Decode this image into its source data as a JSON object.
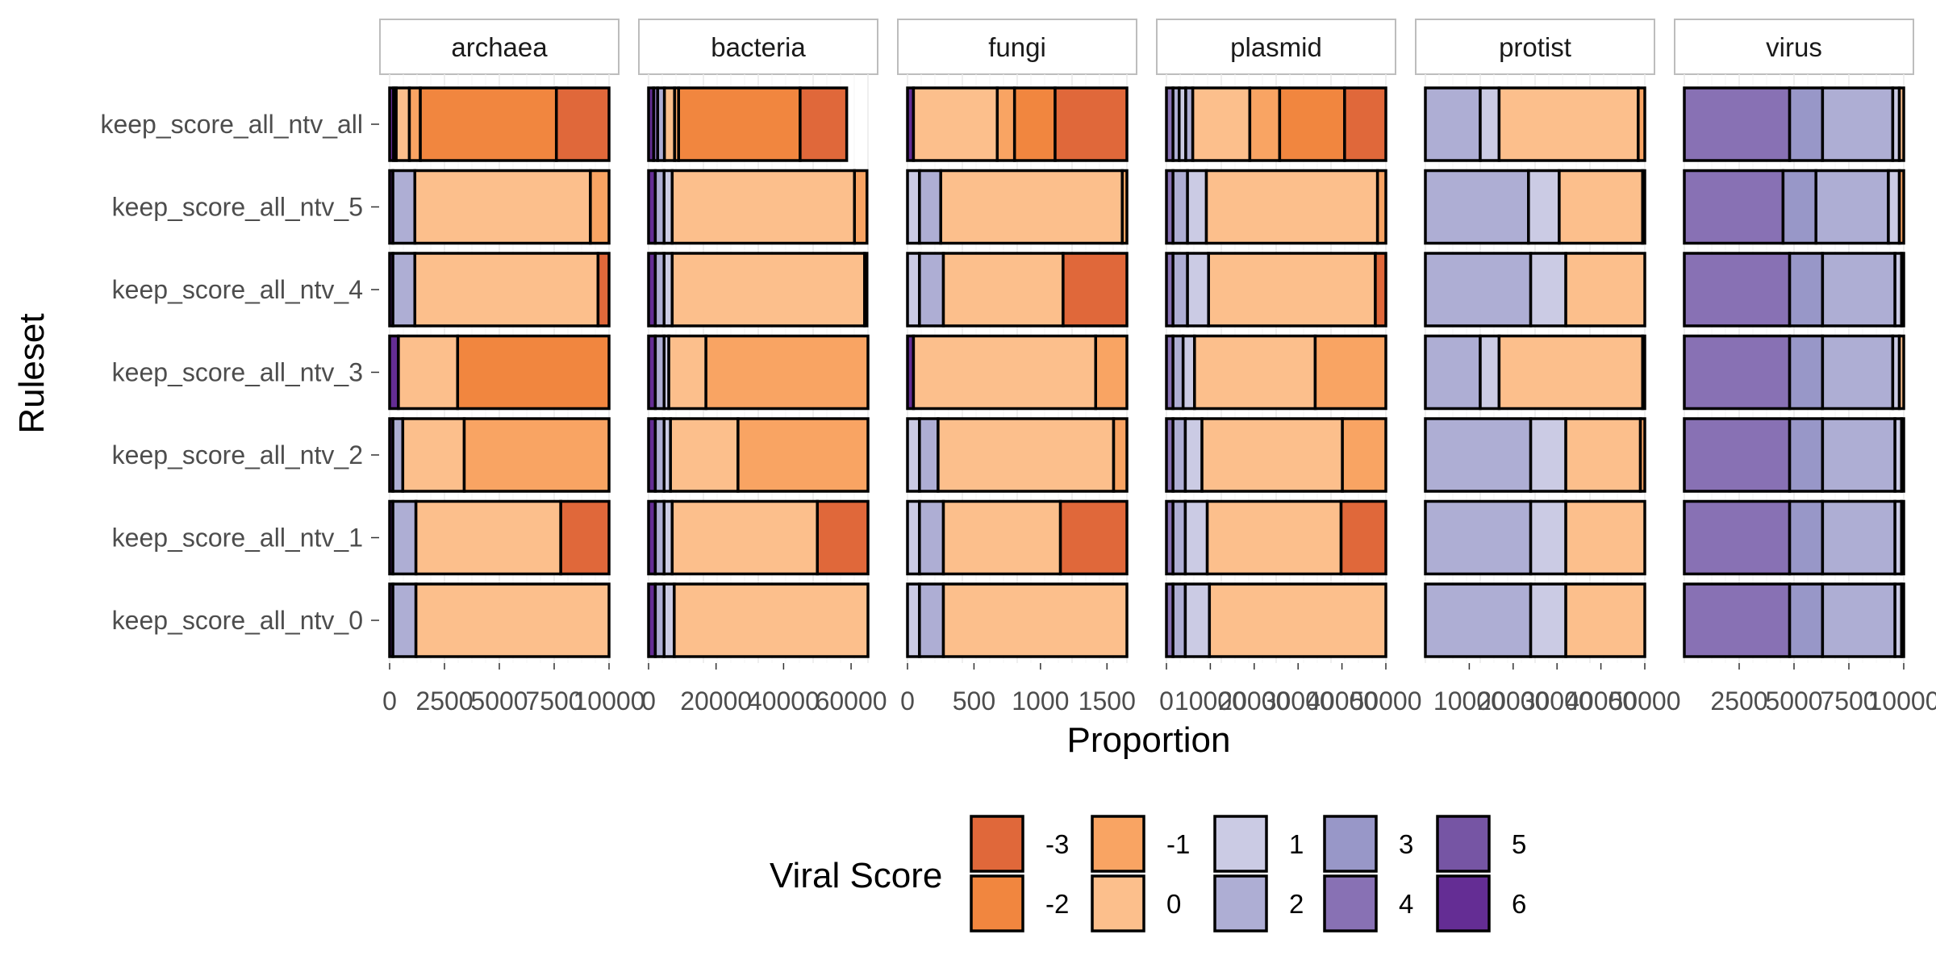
{
  "chart_data": {
    "type": "bar",
    "orientation": "horizontal",
    "stacked": true,
    "xlabel": "Proportion",
    "ylabel": "Ruleset",
    "grid": true,
    "legend_placement": "bottom",
    "legend_title": "Viral Score",
    "categories": [
      "keep_score_all_ntv_all",
      "keep_score_all_ntv_5",
      "keep_score_all_ntv_4",
      "keep_score_all_ntv_3",
      "keep_score_all_ntv_2",
      "keep_score_all_ntv_1",
      "keep_score_all_ntv_0"
    ],
    "score_levels": [
      "-3",
      "-2",
      "-1",
      "0",
      "1",
      "2",
      "3",
      "4",
      "5",
      "6"
    ],
    "colors": {
      "-3": "#e0683a",
      "-2": "#f1863f",
      "-1": "#f9a463",
      "0": "#fcbf8c",
      "1": "#cbcbe4",
      "2": "#aeaed4",
      "3": "#9897c8",
      "4": "#8871b4",
      "5": "#7655a4",
      "6": "#642d94"
    },
    "panels": [
      {
        "name": "archaea",
        "xlim": [
          0,
          10000
        ],
        "xticks": [
          "0",
          "2500",
          "5000",
          "7500",
          "10000"
        ],
        "tick_values": [
          0,
          2500,
          5000,
          7500,
          10000
        ],
        "rows": [
          [
            {
              "s": "6",
              "v": 180
            },
            {
              "s": "2",
              "v": 120
            },
            {
              "s": "0",
              "v": 600
            },
            {
              "s": "-1",
              "v": 500
            },
            {
              "s": "-2",
              "v": 6200
            },
            {
              "s": "-3",
              "v": 2400
            }
          ],
          [
            {
              "s": "6",
              "v": 150
            },
            {
              "s": "2",
              "v": 1000
            },
            {
              "s": "0",
              "v": 8000
            },
            {
              "s": "-1",
              "v": 850
            }
          ],
          [
            {
              "s": "6",
              "v": 150
            },
            {
              "s": "2",
              "v": 1000
            },
            {
              "s": "0",
              "v": 8350
            },
            {
              "s": "-3",
              "v": 500
            }
          ],
          [
            {
              "s": "6",
              "v": 400
            },
            {
              "s": "0",
              "v": 2700
            },
            {
              "s": "-2",
              "v": 6900
            }
          ],
          [
            {
              "s": "6",
              "v": 150
            },
            {
              "s": "2",
              "v": 450
            },
            {
              "s": "0",
              "v": 2800
            },
            {
              "s": "-1",
              "v": 6600
            }
          ],
          [
            {
              "s": "6",
              "v": 150
            },
            {
              "s": "2",
              "v": 1050
            },
            {
              "s": "0",
              "v": 6600
            },
            {
              "s": "-3",
              "v": 2200
            }
          ],
          [
            {
              "s": "6",
              "v": 150
            },
            {
              "s": "2",
              "v": 1050
            },
            {
              "s": "0",
              "v": 8800
            }
          ]
        ]
      },
      {
        "name": "bacteria",
        "xlim": [
          0,
          65000
        ],
        "xticks": [
          "0",
          "20000",
          "40000",
          "60000"
        ],
        "tick_values": [
          0,
          20000,
          40000,
          60000
        ],
        "rows": [
          [
            {
              "s": "6",
              "v": 1500
            },
            {
              "s": "4",
              "v": 1200
            },
            {
              "s": "2",
              "v": 2000
            },
            {
              "s": "0",
              "v": 3000
            },
            {
              "s": "-1",
              "v": 1200
            },
            {
              "s": "-2",
              "v": 36000
            },
            {
              "s": "-3",
              "v": 13800
            }
          ],
          [
            {
              "s": "6",
              "v": 2000
            },
            {
              "s": "2",
              "v": 2600
            },
            {
              "s": "1",
              "v": 2400
            },
            {
              "s": "0",
              "v": 54000
            },
            {
              "s": "-1",
              "v": 3700
            }
          ],
          [
            {
              "s": "6",
              "v": 2000
            },
            {
              "s": "2",
              "v": 2600
            },
            {
              "s": "1",
              "v": 2400
            },
            {
              "s": "0",
              "v": 57000
            },
            {
              "s": "-1",
              "v": 700
            }
          ],
          [
            {
              "s": "6",
              "v": 2000
            },
            {
              "s": "2",
              "v": 2600
            },
            {
              "s": "1",
              "v": 1400
            },
            {
              "s": "0",
              "v": 11000
            },
            {
              "s": "-1",
              "v": 48000
            }
          ],
          [
            {
              "s": "6",
              "v": 2000
            },
            {
              "s": "2",
              "v": 2600
            },
            {
              "s": "1",
              "v": 1900
            },
            {
              "s": "0",
              "v": 20000
            },
            {
              "s": "-1",
              "v": 38500
            }
          ],
          [
            {
              "s": "6",
              "v": 2000
            },
            {
              "s": "2",
              "v": 2600
            },
            {
              "s": "1",
              "v": 2400
            },
            {
              "s": "0",
              "v": 43000
            },
            {
              "s": "-3",
              "v": 15000
            }
          ],
          [
            {
              "s": "6",
              "v": 2000
            },
            {
              "s": "2",
              "v": 2600
            },
            {
              "s": "1",
              "v": 3000
            },
            {
              "s": "0",
              "v": 57400
            }
          ]
        ]
      },
      {
        "name": "fungi",
        "xlim": [
          0,
          1650
        ],
        "xticks": [
          "0",
          "500",
          "1000",
          "1500"
        ],
        "tick_values": [
          0,
          500,
          1000,
          1500
        ],
        "rows": [
          [
            {
              "s": "6",
              "v": 45
            },
            {
              "s": "0",
              "v": 630
            },
            {
              "s": "-1",
              "v": 130
            },
            {
              "s": "-2",
              "v": 305
            },
            {
              "s": "-3",
              "v": 540
            }
          ],
          [
            {
              "s": "1",
              "v": 90
            },
            {
              "s": "2",
              "v": 160
            },
            {
              "s": "0",
              "v": 1365
            },
            {
              "s": "-1",
              "v": 35
            }
          ],
          [
            {
              "s": "1",
              "v": 90
            },
            {
              "s": "2",
              "v": 180
            },
            {
              "s": "0",
              "v": 900
            },
            {
              "s": "-3",
              "v": 480
            }
          ],
          [
            {
              "s": "6",
              "v": 45
            },
            {
              "s": "0",
              "v": 1370
            },
            {
              "s": "-1",
              "v": 235
            }
          ],
          [
            {
              "s": "1",
              "v": 90
            },
            {
              "s": "2",
              "v": 140
            },
            {
              "s": "0",
              "v": 1320
            },
            {
              "s": "-1",
              "v": 100
            }
          ],
          [
            {
              "s": "1",
              "v": 90
            },
            {
              "s": "2",
              "v": 180
            },
            {
              "s": "0",
              "v": 880
            },
            {
              "s": "-3",
              "v": 500
            }
          ],
          [
            {
              "s": "1",
              "v": 90
            },
            {
              "s": "2",
              "v": 180
            },
            {
              "s": "0",
              "v": 1380
            }
          ]
        ]
      },
      {
        "name": "plasmid",
        "xlim": [
          0,
          50000
        ],
        "xticks": [
          "0",
          "10000",
          "20000",
          "30000",
          "40000",
          "50000"
        ],
        "tick_values": [
          0,
          10000,
          20000,
          30000,
          40000,
          50000
        ],
        "rows": [
          [
            {
              "s": "4",
              "v": 1500
            },
            {
              "s": "2",
              "v": 1400
            },
            {
              "s": "1",
              "v": 1500
            },
            {
              "s": "2",
              "v": 1600
            },
            {
              "s": "0",
              "v": 13000
            },
            {
              "s": "-1",
              "v": 6800
            },
            {
              "s": "-2",
              "v": 14800
            },
            {
              "s": "-3",
              "v": 9400
            }
          ],
          [
            {
              "s": "4",
              "v": 1500
            },
            {
              "s": "2",
              "v": 3300
            },
            {
              "s": "1",
              "v": 4300
            },
            {
              "s": "0",
              "v": 39000
            },
            {
              "s": "-1",
              "v": 1900
            }
          ],
          [
            {
              "s": "4",
              "v": 1500
            },
            {
              "s": "2",
              "v": 3300
            },
            {
              "s": "1",
              "v": 4800
            },
            {
              "s": "0",
              "v": 38000
            },
            {
              "s": "-3",
              "v": 2400
            }
          ],
          [
            {
              "s": "4",
              "v": 1500
            },
            {
              "s": "2",
              "v": 2300
            },
            {
              "s": "1",
              "v": 2600
            },
            {
              "s": "0",
              "v": 27500
            },
            {
              "s": "-1",
              "v": 16100
            }
          ],
          [
            {
              "s": "4",
              "v": 1500
            },
            {
              "s": "2",
              "v": 2800
            },
            {
              "s": "1",
              "v": 3800
            },
            {
              "s": "0",
              "v": 32000
            },
            {
              "s": "-1",
              "v": 9900
            }
          ],
          [
            {
              "s": "4",
              "v": 1500
            },
            {
              "s": "2",
              "v": 2800
            },
            {
              "s": "1",
              "v": 5000
            },
            {
              "s": "0",
              "v": 30500
            },
            {
              "s": "-3",
              "v": 10200
            }
          ],
          [
            {
              "s": "4",
              "v": 1500
            },
            {
              "s": "2",
              "v": 2800
            },
            {
              "s": "1",
              "v": 5500
            },
            {
              "s": "0",
              "v": 40200
            }
          ]
        ]
      },
      {
        "name": "protist",
        "xlim": [
          0,
          50000
        ],
        "xticks": [
          "10000",
          "20000",
          "30000",
          "40000",
          "50000"
        ],
        "tick_values": [
          10000,
          20000,
          30000,
          40000,
          50000
        ],
        "rows": [
          [
            {
              "s": "2",
              "v": 12500
            },
            {
              "s": "1",
              "v": 4300
            },
            {
              "s": "0",
              "v": 31700
            },
            {
              "s": "-1",
              "v": 1500
            }
          ],
          [
            {
              "s": "2",
              "v": 23500
            },
            {
              "s": "1",
              "v": 7000
            },
            {
              "s": "0",
              "v": 19000
            },
            {
              "s": "-1",
              "v": 500
            }
          ],
          [
            {
              "s": "2",
              "v": 24000
            },
            {
              "s": "1",
              "v": 8000
            },
            {
              "s": "0",
              "v": 18000
            }
          ],
          [
            {
              "s": "2",
              "v": 12500
            },
            {
              "s": "1",
              "v": 4300
            },
            {
              "s": "0",
              "v": 32700
            },
            {
              "s": "-1",
              "v": 500
            }
          ],
          [
            {
              "s": "2",
              "v": 24000
            },
            {
              "s": "1",
              "v": 8000
            },
            {
              "s": "0",
              "v": 17000
            },
            {
              "s": "-1",
              "v": 1000
            }
          ],
          [
            {
              "s": "2",
              "v": 24000
            },
            {
              "s": "1",
              "v": 8000
            },
            {
              "s": "0",
              "v": 18000
            }
          ],
          [
            {
              "s": "2",
              "v": 24000
            },
            {
              "s": "1",
              "v": 8000
            },
            {
              "s": "0",
              "v": 18000
            }
          ]
        ]
      },
      {
        "name": "virus",
        "xlim": [
          0,
          10000
        ],
        "xticks": [
          "2500",
          "5000",
          "7500",
          "10000"
        ],
        "tick_values": [
          2500,
          5000,
          7500,
          10000
        ],
        "rows": [
          [
            {
              "s": "4",
              "v": 4800
            },
            {
              "s": "3",
              "v": 1500
            },
            {
              "s": "2",
              "v": 3200
            },
            {
              "s": "1",
              "v": 300
            },
            {
              "s": "0",
              "v": 200
            }
          ],
          [
            {
              "s": "4",
              "v": 4500
            },
            {
              "s": "3",
              "v": 1500
            },
            {
              "s": "2",
              "v": 3300
            },
            {
              "s": "1",
              "v": 500
            },
            {
              "s": "-1",
              "v": 200
            }
          ],
          [
            {
              "s": "4",
              "v": 4800
            },
            {
              "s": "3",
              "v": 1500
            },
            {
              "s": "2",
              "v": 3300
            },
            {
              "s": "1",
              "v": 300
            },
            {
              "s": "0",
              "v": 100
            }
          ],
          [
            {
              "s": "4",
              "v": 4800
            },
            {
              "s": "3",
              "v": 1500
            },
            {
              "s": "2",
              "v": 3200
            },
            {
              "s": "1",
              "v": 300
            },
            {
              "s": "0",
              "v": 200
            }
          ],
          [
            {
              "s": "4",
              "v": 4800
            },
            {
              "s": "3",
              "v": 1500
            },
            {
              "s": "2",
              "v": 3300
            },
            {
              "s": "1",
              "v": 300
            },
            {
              "s": "0",
              "v": 100
            }
          ],
          [
            {
              "s": "4",
              "v": 4800
            },
            {
              "s": "3",
              "v": 1500
            },
            {
              "s": "2",
              "v": 3300
            },
            {
              "s": "1",
              "v": 300
            },
            {
              "s": "0",
              "v": 100
            }
          ],
          [
            {
              "s": "4",
              "v": 4800
            },
            {
              "s": "3",
              "v": 1500
            },
            {
              "s": "2",
              "v": 3300
            },
            {
              "s": "1",
              "v": 300
            },
            {
              "s": "0",
              "v": 100
            }
          ]
        ]
      }
    ],
    "legend": [
      {
        "score": "-3",
        "label": "-3"
      },
      {
        "score": "-2",
        "label": "-2"
      },
      {
        "score": "-1",
        "label": "-1"
      },
      {
        "score": "0",
        "label": "0"
      },
      {
        "score": "1",
        "label": "1"
      },
      {
        "score": "2",
        "label": "2"
      },
      {
        "score": "3",
        "label": "3"
      },
      {
        "score": "4",
        "label": "4"
      },
      {
        "score": "5",
        "label": "5"
      },
      {
        "score": "6",
        "label": "6"
      }
    ]
  }
}
